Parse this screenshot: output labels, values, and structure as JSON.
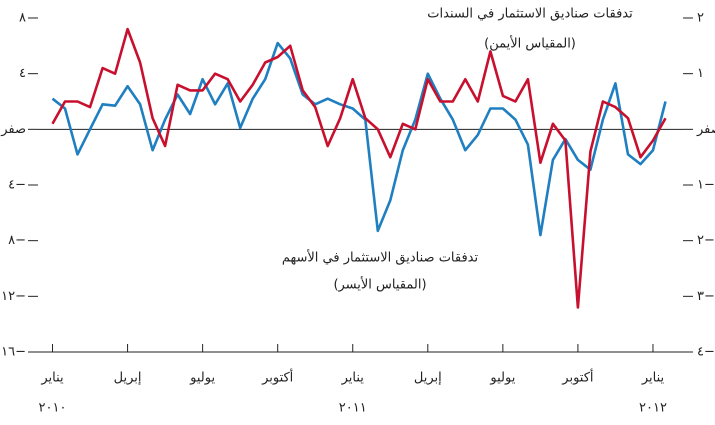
{
  "chart_data": {
    "type": "line",
    "x": [
      0,
      0.5,
      1,
      1.5,
      2,
      2.5,
      3,
      3.5,
      4,
      4.5,
      5,
      5.5,
      6,
      6.5,
      7,
      7.5,
      8,
      8.5,
      9,
      9.5,
      10,
      10.5,
      11,
      11.5,
      12,
      12.5,
      13,
      13.5,
      14,
      14.5,
      15,
      15.5,
      16,
      16.5,
      17,
      17.5,
      18,
      18.5,
      19,
      19.5,
      20,
      20.5,
      21,
      21.5,
      22,
      22.5,
      23,
      23.5,
      24,
      24.5
    ],
    "series": [
      {
        "name": "تدفقات صناديق الاستثمار في الأسهم",
        "note": "(المقياس الأيسر)",
        "color": "#1f7fc1",
        "axis": "y",
        "values": [
          2.2,
          1.5,
          -1.8,
          0,
          1.8,
          1.7,
          3.1,
          1.8,
          -1.5,
          0.7,
          2.5,
          1.1,
          3.6,
          1.8,
          3.3,
          0.1,
          2.2,
          3.6,
          6.2,
          5.1,
          2.5,
          1.8,
          2.2,
          1.8,
          1.5,
          0.7,
          -7.3,
          -5.1,
          -1.5,
          0.7,
          4.0,
          2.2,
          0.7,
          -1.5,
          -0.4,
          1.5,
          1.5,
          0.7,
          -1.1,
          -7.6,
          -2.2,
          -0.7,
          -2.2,
          -2.9,
          0.7,
          3.3,
          -1.8,
          -2.5,
          -1.5,
          2.0
        ]
      },
      {
        "name": "تدفقات صناديق الاستثمار في السندات",
        "note": "(المقياس الأيمن)",
        "color": "#c8102e",
        "axis": "y2",
        "values": [
          0.1,
          0.5,
          0.5,
          0.4,
          1.1,
          1.0,
          1.8,
          1.2,
          0.2,
          -0.3,
          0.8,
          0.7,
          0.7,
          1.0,
          0.9,
          0.5,
          0.8,
          1.2,
          1.3,
          1.5,
          0.7,
          0.4,
          -0.3,
          0.2,
          0.9,
          0.2,
          0,
          -0.5,
          0.1,
          0,
          0.9,
          0.5,
          0.5,
          0.9,
          0.5,
          1.4,
          0.6,
          0.5,
          0.9,
          -0.6,
          0.1,
          -0.2,
          -3.2,
          -0.4,
          0.5,
          0.4,
          0.2,
          -0.5,
          -0.2,
          0.2
        ]
      }
    ],
    "xlim": [
      -0.9,
      25.2
    ],
    "xticks": [
      {
        "value": 0,
        "label": "يناير"
      },
      {
        "value": 3,
        "label": "إبريل"
      },
      {
        "value": 6,
        "label": "يوليو"
      },
      {
        "value": 9,
        "label": "أكتوبر"
      },
      {
        "value": 12,
        "label": "يناير"
      },
      {
        "value": 15,
        "label": "إبريل"
      },
      {
        "value": 18,
        "label": "يوليو"
      },
      {
        "value": 21,
        "label": "أكتوبر"
      },
      {
        "value": 24,
        "label": "يناير"
      }
    ],
    "year_labels": [
      {
        "value": 0,
        "label": "٢٠١٠"
      },
      {
        "value": 12,
        "label": "٢٠١١"
      },
      {
        "value": 24,
        "label": "٢٠١٢"
      }
    ],
    "ylim": [
      -16,
      8
    ],
    "yticks": [
      {
        "value": 8,
        "label": "٨"
      },
      {
        "value": 4,
        "label": "٤"
      },
      {
        "value": 0,
        "label": "صفر"
      },
      {
        "value": -4,
        "label": "٤−"
      },
      {
        "value": -8,
        "label": "٨−"
      },
      {
        "value": -12,
        "label": "١٢−"
      },
      {
        "value": -16,
        "label": "١٦−"
      }
    ],
    "y2lim": [
      -4,
      2
    ],
    "y2ticks": [
      {
        "value": 2,
        "label": "٢"
      },
      {
        "value": 1,
        "label": "١"
      },
      {
        "value": 0,
        "label": "صفر"
      },
      {
        "value": -1,
        "label": "١−"
      },
      {
        "value": -2,
        "label": "٢−"
      },
      {
        "value": -3,
        "label": "٣−"
      },
      {
        "value": -4,
        "label": "٤−"
      }
    ]
  }
}
